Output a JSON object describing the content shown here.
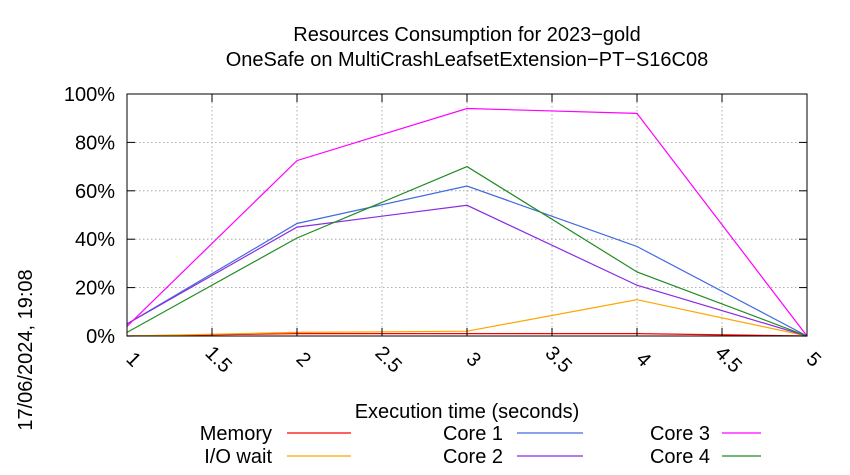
{
  "side_label": "17/06/2024, 19:08",
  "chart_data": {
    "type": "line",
    "title": [
      "Resources Consumption for 2023−gold",
      "OneSafe on MultiCrashLeafsetExtension−PT−S16C08"
    ],
    "xlabel": "Execution time (seconds)",
    "ylabel": "",
    "xlim": [
      1,
      5
    ],
    "ylim": [
      0,
      100
    ],
    "x_ticks": [
      "1",
      "1.5",
      "2",
      "2.5",
      "3",
      "3.5",
      "4",
      "4.5",
      "5"
    ],
    "y_ticks": [
      "0%",
      "20%",
      "40%",
      "60%",
      "80%",
      "100%"
    ],
    "grid": true,
    "legend_position": "bottom",
    "x": [
      1,
      2,
      3,
      4,
      5
    ],
    "series": [
      {
        "name": "Memory",
        "color": "#ff0000",
        "values": [
          0,
          1,
          1,
          1,
          0
        ]
      },
      {
        "name": "I/O wait",
        "color": "#ffa500",
        "values": [
          0,
          1.5,
          2,
          15,
          0
        ]
      },
      {
        "name": "Core 1",
        "color": "#4169e1",
        "values": [
          5,
          46.5,
          62,
          37,
          0
        ]
      },
      {
        "name": "Core 2",
        "color": "#8a2be2",
        "values": [
          5,
          45,
          54,
          21,
          0
        ]
      },
      {
        "name": "Core 3",
        "color": "#ff00ff",
        "values": [
          4,
          72.5,
          94,
          92,
          0
        ]
      },
      {
        "name": "Core 4",
        "color": "#228b22",
        "values": [
          1.5,
          40.5,
          70,
          26.5,
          0
        ]
      }
    ]
  }
}
